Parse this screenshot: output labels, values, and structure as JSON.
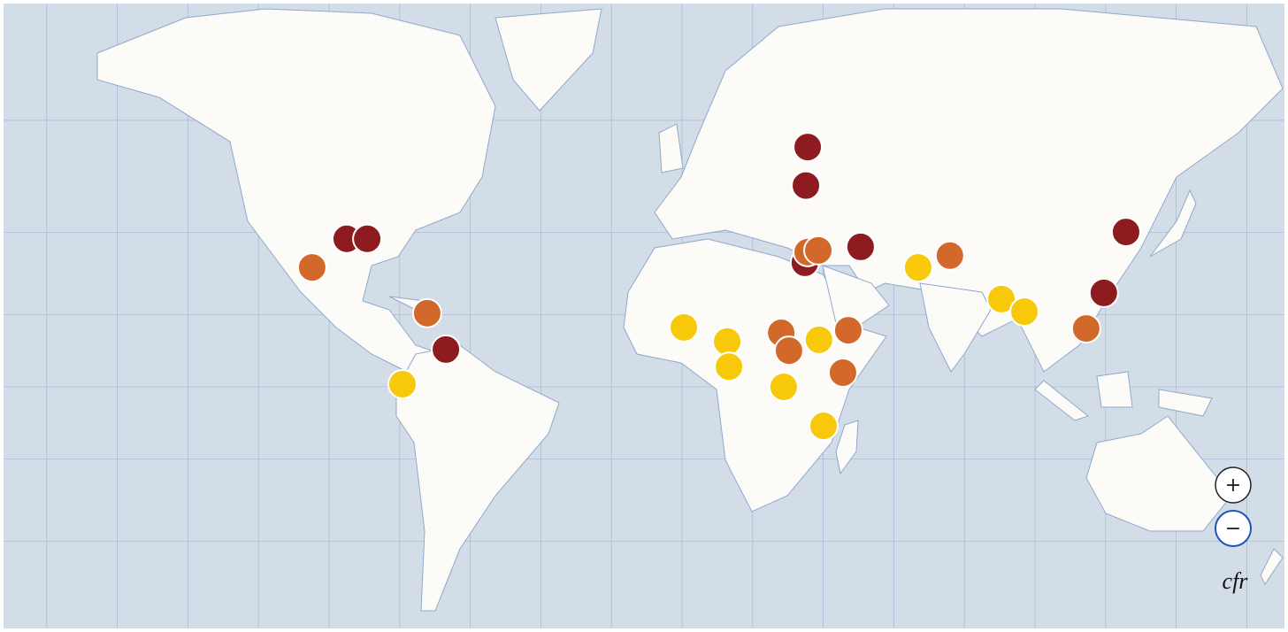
{
  "markers": [
    {
      "lon": 35.6,
      "lat": 56.0,
      "color": "#8e1b1f"
    },
    {
      "lon": 35.1,
      "lat": 49.4,
      "color": "#8e1b1f"
    },
    {
      "lon": -95.0,
      "lat": 38.6,
      "color": "#8e1b1f"
    },
    {
      "lon": -89.2,
      "lat": 38.6,
      "color": "#8e1b1f"
    },
    {
      "lon": -104.8,
      "lat": 32.0,
      "color": "#d2692a"
    },
    {
      "lon": -72.2,
      "lat": 20.4,
      "color": "#d2692a"
    },
    {
      "lon": -66.9,
      "lat": 10.5,
      "color": "#8e1b1f"
    },
    {
      "lon": -79.2,
      "lat": 0.75,
      "color": "#f8c90a"
    },
    {
      "lon": 0.5,
      "lat": 16.6,
      "color": "#f8c90a"
    },
    {
      "lon": 12.8,
      "lat": 12.7,
      "color": "#f8c90a"
    },
    {
      "lon": 13.3,
      "lat": 5.7,
      "color": "#f8c90a"
    },
    {
      "lon": 28.1,
      "lat": 15.1,
      "color": "#d2692a"
    },
    {
      "lon": 30.3,
      "lat": 10.2,
      "color": "#d2692a"
    },
    {
      "lon": 38.8,
      "lat": 13.2,
      "color": "#f8c90a"
    },
    {
      "lon": 47.1,
      "lat": 15.8,
      "color": "#d2692a"
    },
    {
      "lon": 45.6,
      "lat": 4.0,
      "color": "#d2692a"
    },
    {
      "lon": 28.8,
      "lat": 0.0,
      "color": "#f8c90a"
    },
    {
      "lon": 40.1,
      "lat": -11.0,
      "color": "#f8c90a"
    },
    {
      "lon": 34.8,
      "lat": 33.1,
      "color": "#8e1b1f"
    },
    {
      "lon": 35.6,
      "lat": 35.6,
      "color": "#d2692a"
    },
    {
      "lon": 38.6,
      "lat": 36.0,
      "color": "#d2692a"
    },
    {
      "lon": 50.6,
      "lat": 36.8,
      "color": "#8e1b1f"
    },
    {
      "lon": 66.9,
      "lat": 32.0,
      "color": "#f8c90a"
    },
    {
      "lon": 75.9,
      "lat": 34.8,
      "color": "#d2692a"
    },
    {
      "lon": 90.5,
      "lat": 24.1,
      "color": "#f8c90a"
    },
    {
      "lon": 97.0,
      "lat": 20.8,
      "color": "#f8c90a"
    },
    {
      "lon": 114.5,
      "lat": 16.3,
      "color": "#d2692a"
    },
    {
      "lon": 119.5,
      "lat": 25.7,
      "color": "#8e1b1f"
    },
    {
      "lon": 125.8,
      "lat": 40.1,
      "color": "#8e1b1f"
    }
  ],
  "controls": {
    "zoom_in": "+",
    "zoom_out": "−"
  },
  "logo": "cfr"
}
